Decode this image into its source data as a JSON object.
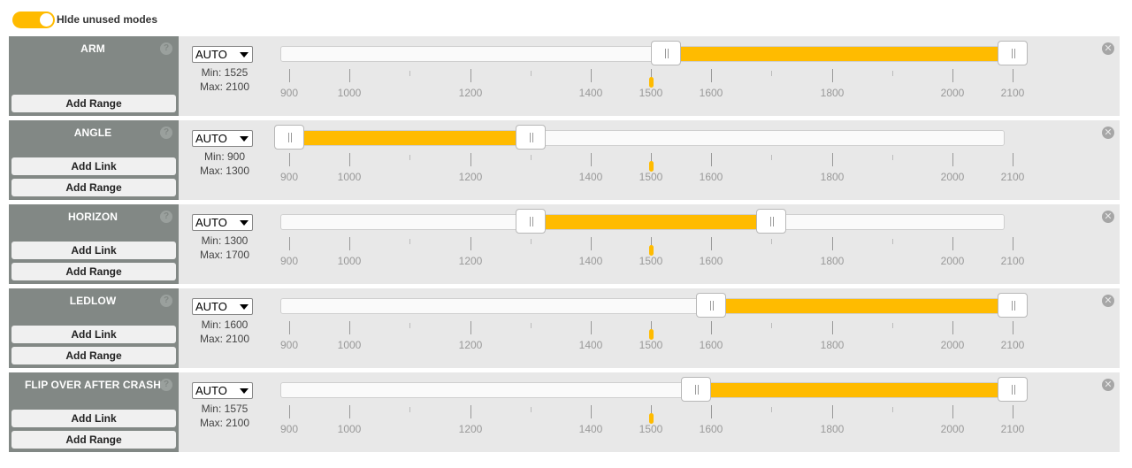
{
  "toggle": {
    "label": "HIde unused modes",
    "checked": true
  },
  "accent_color": "#ffbb00",
  "scale": {
    "min": 900,
    "max": 2100
  },
  "tick_labels": [
    "900",
    "1000",
    "1200",
    "1400",
    "1500",
    "1600",
    "1800",
    "2000",
    "2100"
  ],
  "channel_value": 1500,
  "modes": [
    {
      "name": "ARM",
      "select": "AUTO",
      "min_text": "Min: 1525",
      "max_text": "Max: 2100",
      "range_min": 1525,
      "range_max": 2100,
      "add_link": null,
      "add_range": "Add Range"
    },
    {
      "name": "ANGLE",
      "select": "AUTO",
      "min_text": "Min: 900",
      "max_text": "Max: 1300",
      "range_min": 900,
      "range_max": 1300,
      "add_link": "Add Link",
      "add_range": "Add Range"
    },
    {
      "name": "HORIZON",
      "select": "AUTO",
      "min_text": "Min: 1300",
      "max_text": "Max: 1700",
      "range_min": 1300,
      "range_max": 1700,
      "add_link": "Add Link",
      "add_range": "Add Range"
    },
    {
      "name": "LEDLOW",
      "select": "AUTO",
      "min_text": "Min: 1600",
      "max_text": "Max: 2100",
      "range_min": 1600,
      "range_max": 2100,
      "add_link": "Add Link",
      "add_range": "Add Range"
    },
    {
      "name": "FLIP OVER AFTER CRASH",
      "select": "AUTO",
      "min_text": "Min: 1575",
      "max_text": "Max: 2100",
      "range_min": 1575,
      "range_max": 2100,
      "add_link": "Add Link",
      "add_range": "Add Range"
    }
  ],
  "icons": {
    "help": "help-icon",
    "remove": "remove-icon"
  },
  "help_glyph": "?",
  "remove_glyph": "✕"
}
